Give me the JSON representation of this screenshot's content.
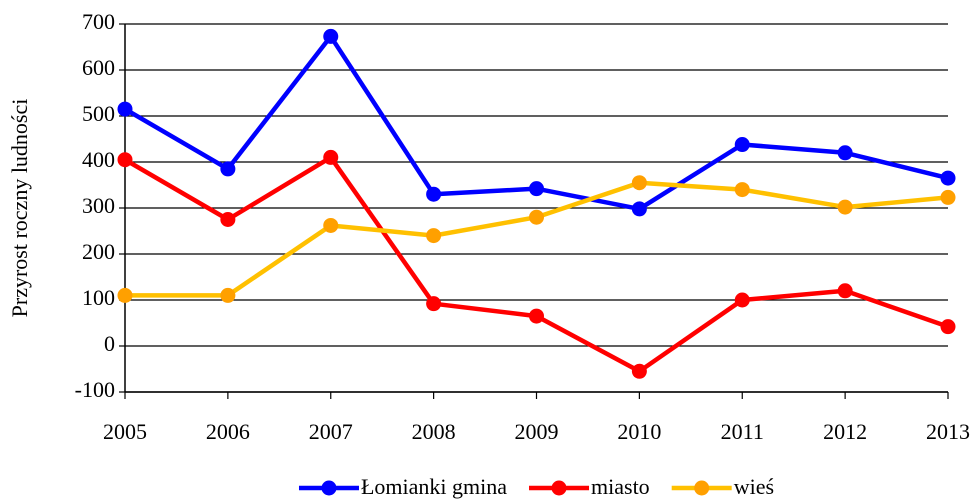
{
  "chart_data": {
    "type": "line",
    "y_label": "Przyrost roczny ludności",
    "x": [
      2005,
      2006,
      2007,
      2008,
      2009,
      2010,
      2011,
      2012,
      2013
    ],
    "xlim": [
      2005,
      2013
    ],
    "xticks": [
      2005,
      2006,
      2007,
      2008,
      2009,
      2010,
      2011,
      2012,
      2013
    ],
    "ylim": [
      -100,
      700
    ],
    "yticks": [
      -100,
      0,
      100,
      200,
      300,
      400,
      500,
      600,
      700
    ],
    "grid": true,
    "legend": "bottom",
    "series": [
      {
        "name": "Łomianki gmina",
        "color": "#0000ff",
        "marker_color": "#0000ff",
        "values": [
          515,
          385,
          673,
          330,
          342,
          298,
          438,
          420,
          365
        ]
      },
      {
        "name": "miasto",
        "color": "#ff0000",
        "marker_color": "#ff0000",
        "values": [
          405,
          275,
          410,
          92,
          65,
          -55,
          100,
          120,
          42
        ]
      },
      {
        "name": "wieś",
        "color": "#ffc000",
        "marker_color": "#ffa000",
        "values": [
          110,
          110,
          262,
          240,
          280,
          355,
          340,
          302,
          323
        ]
      }
    ]
  }
}
